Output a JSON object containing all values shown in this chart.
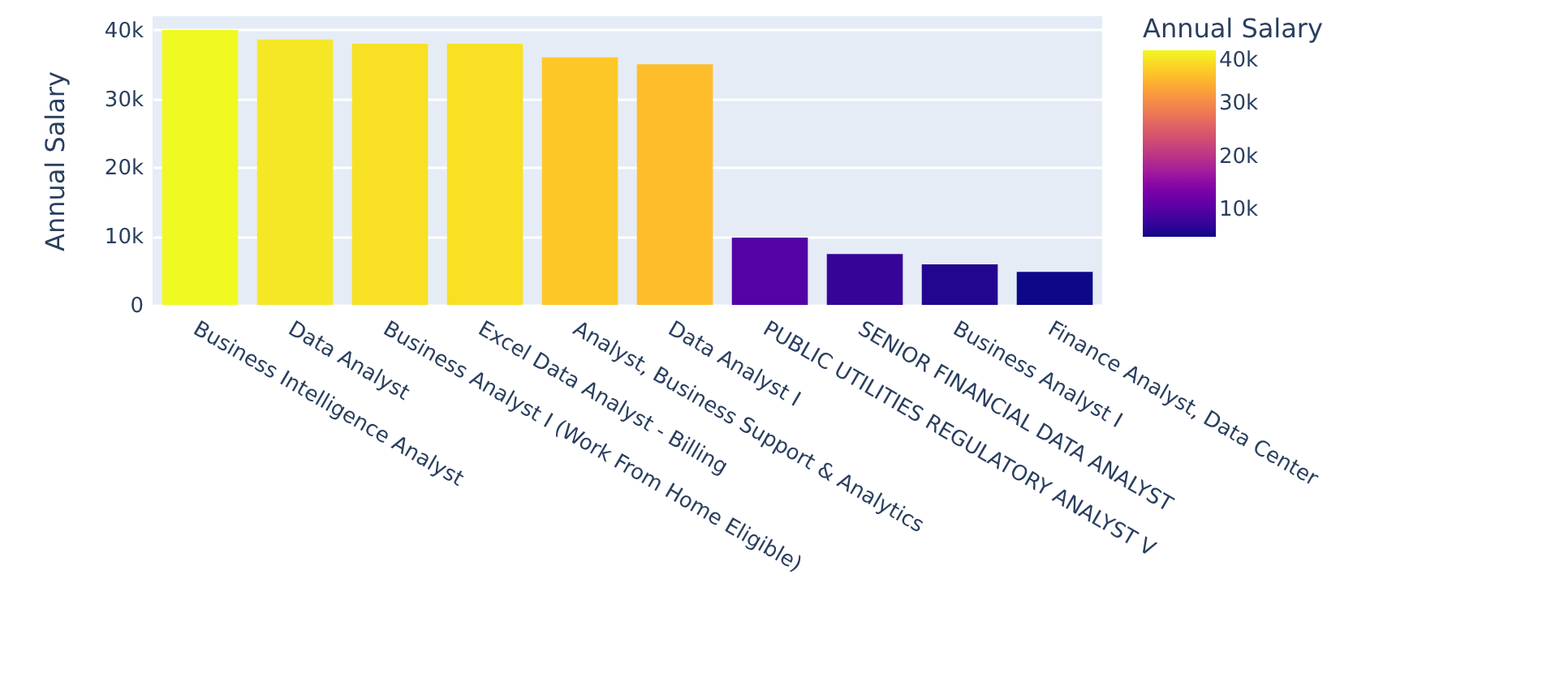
{
  "chart_data": {
    "type": "bar",
    "ylabel": "Annual Salary",
    "legend_title": "Annual Salary",
    "categories": [
      "Business Intelligence Analyst",
      "Data Analyst",
      "Business Analyst I (Work From Home Eligible)",
      "Excel Data Analyst - Billing",
      "Analyst, Business Support & Analytics",
      "Data Analyst I",
      "PUBLIC UTILITIES REGULATORY ANALYST V",
      "SENIOR FINANCIAL DATA ANALYST",
      "Business Analyst I",
      "Finance Analyst, Data Center"
    ],
    "values": [
      40000,
      38600,
      38000,
      38000,
      36000,
      35000,
      9800,
      7400,
      5900,
      4800
    ],
    "ylim": [
      0,
      42000
    ],
    "yticks": [
      {
        "value": 0,
        "label": "0"
      },
      {
        "value": 10000,
        "label": "10k"
      },
      {
        "value": 20000,
        "label": "20k"
      },
      {
        "value": 30000,
        "label": "30k"
      },
      {
        "value": 40000,
        "label": "40k"
      }
    ],
    "clim": [
      4800,
      40000
    ],
    "cticks": [
      {
        "value": 10000,
        "label": "10k"
      },
      {
        "value": 20000,
        "label": "20k"
      },
      {
        "value": 30000,
        "label": "30k"
      },
      {
        "value": 40000,
        "label": "40k"
      }
    ],
    "grid": "y"
  }
}
